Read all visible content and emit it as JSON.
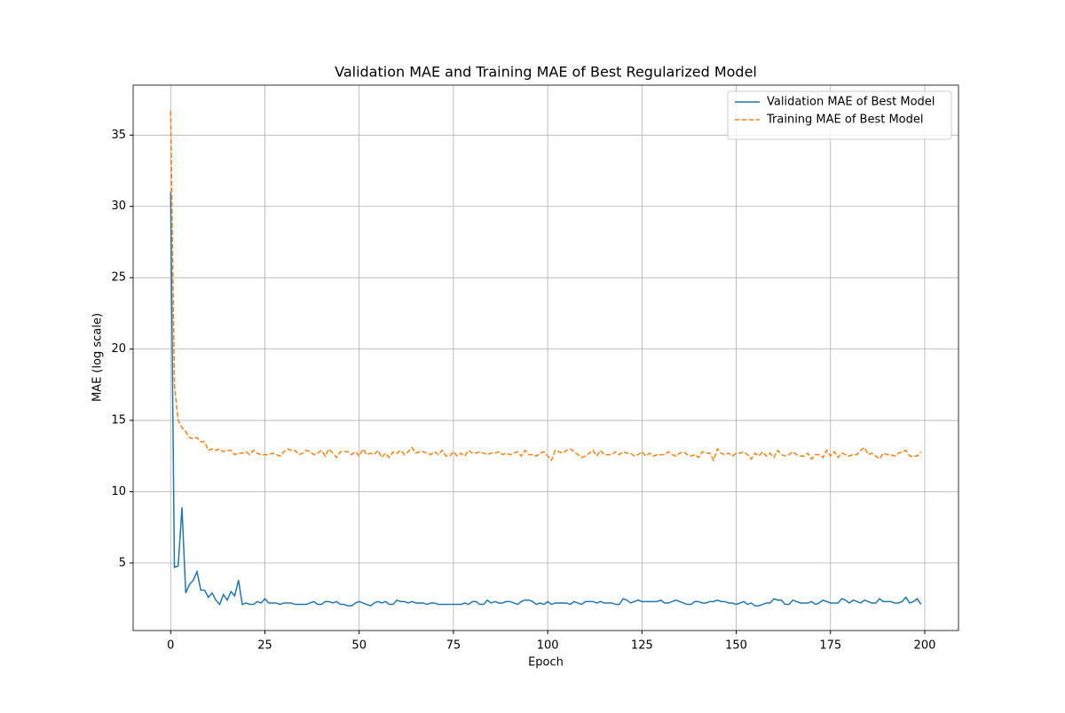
{
  "chart_data": {
    "type": "line",
    "title": "Validation MAE and Training MAE of Best Regularized Model",
    "x_label": "Epoch",
    "y_label": "MAE (log scale)",
    "x": [
      0,
      1,
      2,
      3,
      4,
      5,
      6,
      7,
      8,
      9,
      10,
      11,
      12,
      13,
      14,
      15,
      16,
      17,
      18,
      19,
      20,
      21,
      22,
      23,
      24,
      25,
      26,
      27,
      28,
      29,
      30,
      31,
      32,
      33,
      34,
      35,
      36,
      37,
      38,
      39,
      40,
      41,
      42,
      43,
      44,
      45,
      46,
      47,
      48,
      49,
      50,
      51,
      52,
      53,
      54,
      55,
      56,
      57,
      58,
      59,
      60,
      61,
      62,
      63,
      64,
      65,
      66,
      67,
      68,
      69,
      70,
      71,
      72,
      73,
      74,
      75,
      76,
      77,
      78,
      79,
      80,
      81,
      82,
      83,
      84,
      85,
      86,
      87,
      88,
      89,
      90,
      91,
      92,
      93,
      94,
      95,
      96,
      97,
      98,
      99,
      100,
      101,
      102,
      103,
      104,
      105,
      106,
      107,
      108,
      109,
      110,
      111,
      112,
      113,
      114,
      115,
      116,
      117,
      118,
      119,
      120,
      121,
      122,
      123,
      124,
      125,
      126,
      127,
      128,
      129,
      130,
      131,
      132,
      133,
      134,
      135,
      136,
      137,
      138,
      139,
      140,
      141,
      142,
      143,
      144,
      145,
      146,
      147,
      148,
      149,
      150,
      151,
      152,
      153,
      154,
      155,
      156,
      157,
      158,
      159,
      160,
      161,
      162,
      163,
      164,
      165,
      166,
      167,
      168,
      169,
      170,
      171,
      172,
      173,
      174,
      175,
      176,
      177,
      178,
      179,
      180,
      181,
      182,
      183,
      184,
      185,
      186,
      187,
      188,
      189,
      190,
      191,
      192,
      193,
      194,
      195,
      196,
      197,
      198,
      199
    ],
    "series": [
      {
        "name": "Validation MAE of Best Model",
        "color": "#1f77b4",
        "linestyle": "solid",
        "values": [
          31,
          4.7,
          4.8,
          8.9,
          2.9,
          3.5,
          3.8,
          4.4,
          3.1,
          3.1,
          2.6,
          2.9,
          2.4,
          2.1,
          2.8,
          2.4,
          3.0,
          2.7,
          3.8,
          2.1,
          2.2,
          2.1,
          2.1,
          2.3,
          2.2,
          2.5,
          2.2,
          2.2,
          2.2,
          2.1,
          2.2,
          2.2,
          2.2,
          2.1,
          2.1,
          2.1,
          2.1,
          2.2,
          2.3,
          2.1,
          2.1,
          2.3,
          2.3,
          2.2,
          2.3,
          2.1,
          2.1,
          2.0,
          2.0,
          2.2,
          2.3,
          2.2,
          2.1,
          2.0,
          2.2,
          2.3,
          2.2,
          2.3,
          2.1,
          2.1,
          2.4,
          2.3,
          2.3,
          2.2,
          2.3,
          2.2,
          2.2,
          2.2,
          2.1,
          2.2,
          2.2,
          2.1,
          2.1,
          2.1,
          2.1,
          2.1,
          2.1,
          2.1,
          2.2,
          2.1,
          2.3,
          2.3,
          2.1,
          2.1,
          2.4,
          2.2,
          2.3,
          2.2,
          2.2,
          2.3,
          2.3,
          2.2,
          2.1,
          2.3,
          2.4,
          2.4,
          2.3,
          2.1,
          2.2,
          2.1,
          2.3,
          2.1,
          2.2,
          2.2,
          2.2,
          2.2,
          2.1,
          2.3,
          2.2,
          2.1,
          2.3,
          2.3,
          2.3,
          2.2,
          2.3,
          2.2,
          2.2,
          2.2,
          2.1,
          2.1,
          2.5,
          2.4,
          2.2,
          2.3,
          2.4,
          2.3,
          2.3,
          2.3,
          2.3,
          2.3,
          2.4,
          2.2,
          2.2,
          2.3,
          2.4,
          2.3,
          2.2,
          2.1,
          2.1,
          2.3,
          2.3,
          2.2,
          2.2,
          2.3,
          2.3,
          2.4,
          2.3,
          2.3,
          2.2,
          2.2,
          2.1,
          2.2,
          2.3,
          2.1,
          2.2,
          2.0,
          2.0,
          2.1,
          2.2,
          2.2,
          2.5,
          2.4,
          2.4,
          2.1,
          2.1,
          2.4,
          2.3,
          2.2,
          2.2,
          2.2,
          2.3,
          2.1,
          2.2,
          2.4,
          2.3,
          2.2,
          2.2,
          2.2,
          2.5,
          2.4,
          2.2,
          2.4,
          2.3,
          2.2,
          2.4,
          2.3,
          2.2,
          2.2,
          2.5,
          2.3,
          2.3,
          2.3,
          2.2,
          2.2,
          2.3,
          2.6,
          2.2,
          2.3,
          2.5,
          2.1
        ]
      },
      {
        "name": "Training MAE of Best Model",
        "color": "#ff7f0e",
        "linestyle": "dashed",
        "values": [
          36.7,
          17.5,
          15.0,
          14.5,
          14.2,
          13.8,
          13.7,
          13.8,
          13.5,
          13.5,
          12.9,
          13.0,
          12.9,
          13.0,
          12.8,
          12.9,
          12.9,
          12.6,
          12.7,
          12.7,
          12.8,
          12.6,
          12.9,
          12.7,
          12.6,
          12.6,
          12.6,
          12.7,
          12.6,
          12.5,
          12.8,
          13.0,
          12.9,
          12.9,
          12.6,
          12.7,
          12.9,
          12.8,
          12.6,
          12.7,
          12.9,
          12.5,
          13.0,
          12.7,
          12.4,
          12.8,
          12.8,
          12.8,
          12.6,
          12.8,
          12.5,
          13.0,
          12.6,
          12.7,
          12.6,
          12.9,
          12.4,
          12.7,
          12.4,
          12.8,
          12.7,
          12.9,
          12.6,
          12.8,
          13.1,
          12.7,
          12.8,
          12.8,
          12.7,
          12.6,
          12.8,
          12.6,
          12.9,
          12.5,
          12.5,
          12.8,
          12.5,
          12.7,
          12.5,
          12.9,
          12.7,
          12.7,
          12.8,
          12.7,
          12.6,
          12.7,
          12.7,
          12.8,
          12.6,
          12.7,
          12.6,
          12.7,
          12.8,
          12.5,
          12.9,
          12.6,
          12.6,
          12.5,
          12.7,
          12.8,
          12.5,
          12.2,
          12.9,
          12.8,
          12.7,
          12.9,
          13.0,
          12.8,
          12.6,
          12.4,
          12.5,
          12.7,
          12.9,
          12.5,
          12.9,
          12.6,
          12.6,
          12.6,
          12.8,
          12.6,
          12.8,
          12.7,
          12.7,
          12.5,
          12.6,
          12.8,
          12.5,
          12.7,
          12.5,
          12.6,
          12.6,
          12.6,
          12.8,
          12.6,
          12.5,
          12.7,
          12.8,
          12.6,
          12.5,
          12.6,
          12.4,
          12.8,
          12.7,
          12.7,
          12.2,
          13.0,
          12.7,
          12.6,
          12.7,
          12.5,
          12.7,
          12.7,
          12.8,
          12.6,
          12.3,
          12.7,
          12.5,
          12.8,
          12.5,
          12.7,
          12.4,
          12.9,
          12.6,
          12.5,
          12.6,
          12.8,
          12.6,
          12.5,
          12.5,
          12.7,
          12.3,
          12.6,
          12.6,
          12.4,
          12.9,
          12.5,
          12.8,
          12.4,
          12.7,
          12.6,
          12.5,
          12.6,
          12.6,
          12.9,
          13.1,
          12.6,
          12.7,
          12.5,
          12.3,
          12.7,
          12.6,
          12.6,
          12.5,
          12.7,
          12.8,
          12.9,
          12.5,
          12.5,
          12.5,
          12.8
        ]
      }
    ],
    "xlim": [
      -9.95,
      208.95
    ],
    "xticks": [
      0,
      25,
      50,
      75,
      100,
      125,
      150,
      175,
      200
    ],
    "ylim": [
      0.27,
      38.5
    ],
    "yticks": [
      5,
      10,
      15,
      20,
      25,
      30,
      35
    ],
    "grid": true,
    "legend": "upper right"
  }
}
